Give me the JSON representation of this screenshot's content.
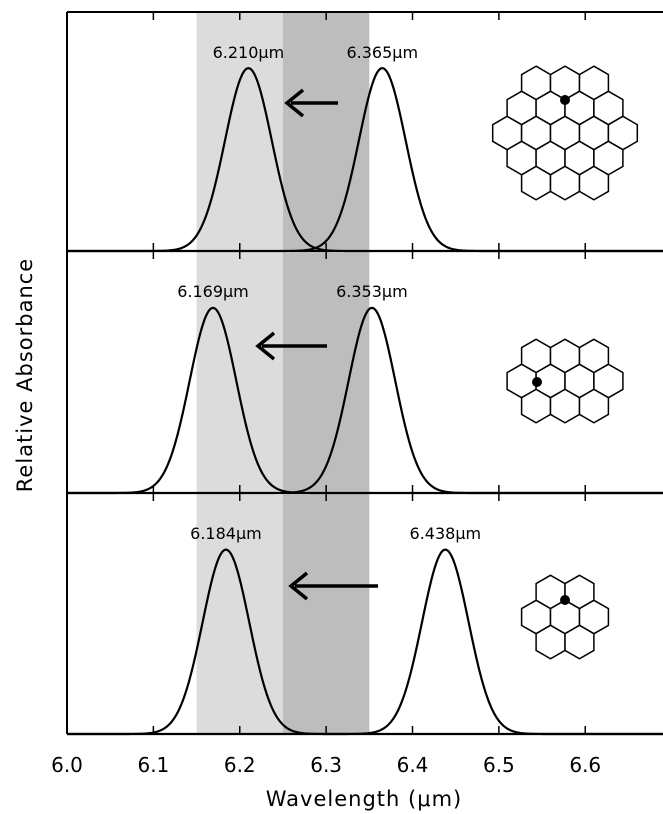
{
  "chart_data": {
    "type": "peaks",
    "x_label": "Wavelength (μm)",
    "y_label": "Relative Absorbance",
    "xlim": [
      6.0,
      6.69
    ],
    "xticks": [
      {
        "value": 6.0,
        "label": "6.0"
      },
      6.1,
      6.2,
      6.3,
      6.4,
      6.5,
      6.6
    ],
    "bands": [
      {
        "from": 6.15,
        "to": 6.25,
        "color": "#dcdcdc"
      },
      {
        "from": 6.25,
        "to": 6.35,
        "color": "#bdbdbd"
      }
    ],
    "peak_width": 0.027,
    "color": "#000000",
    "panels": [
      {
        "values": [
          6.21,
          6.365
        ],
        "value_labels": [
          "6.210μm",
          "6.365μm"
        ]
      },
      {
        "values": [
          6.169,
          6.353
        ],
        "value_labels": [
          "6.169μm",
          "6.353μm"
        ]
      },
      {
        "values": [
          6.184,
          6.438
        ],
        "value_labels": [
          "6.184μm",
          "6.438μm"
        ]
      }
    ]
  }
}
